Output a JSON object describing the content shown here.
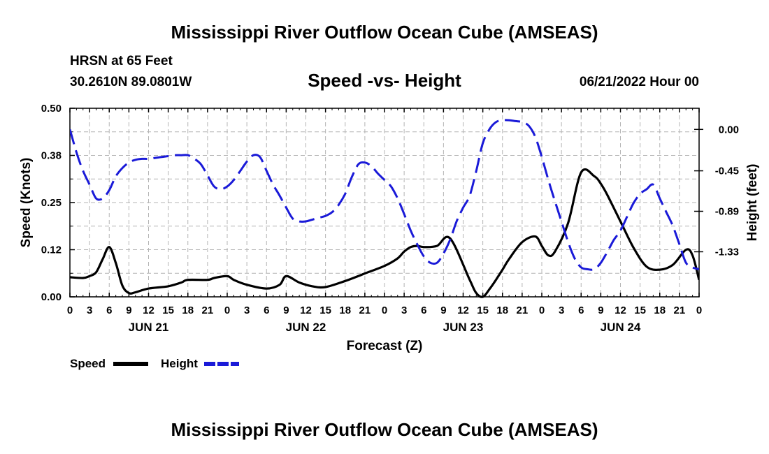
{
  "header": {
    "main_title": "Mississippi River Outflow Ocean Cube (AMSEAS)",
    "station": "HRSN at 65 Feet",
    "coords": "30.2610N  89.0801W",
    "subtitle": "Speed -vs- Height",
    "date": "06/21/2022 Hour 00",
    "bottom_title": "Mississippi River Outflow Ocean Cube (AMSEAS)"
  },
  "chart_data": {
    "type": "line",
    "title": "Speed -vs- Height",
    "xlabel": "Forecast (Z)",
    "ylabel": "Speed (Knots)",
    "y2label": "Height (feet)",
    "xlim": [
      0,
      96
    ],
    "ylim": [
      0,
      0.5
    ],
    "y2lim": [
      -1.82,
      0.23
    ],
    "x_tick_labels": [
      "0",
      "3",
      "6",
      "9",
      "12",
      "15",
      "18",
      "21",
      "0",
      "3",
      "6",
      "9",
      "12",
      "15",
      "18",
      "21",
      "0",
      "3",
      "6",
      "9",
      "12",
      "15",
      "18",
      "21",
      "0",
      "3",
      "6",
      "9",
      "12",
      "15",
      "18",
      "21",
      "0"
    ],
    "day_labels": [
      {
        "x": 12,
        "label": "JUN 21"
      },
      {
        "x": 36,
        "label": "JUN 22"
      },
      {
        "x": 60,
        "label": "JUN 23"
      },
      {
        "x": 84,
        "label": "JUN 24"
      }
    ],
    "y_ticks": [
      {
        "value": 0.0,
        "label": "0.00"
      },
      {
        "value": 0.125,
        "label": "0.12"
      },
      {
        "value": 0.25,
        "label": "0.25"
      },
      {
        "value": 0.375,
        "label": "0.38"
      },
      {
        "value": 0.5,
        "label": "0.50"
      }
    ],
    "y2_ticks": [
      {
        "value": 0.0,
        "label": "0.00"
      },
      {
        "value": -0.45,
        "label": "-0.45"
      },
      {
        "value": -0.89,
        "label": "-0.89"
      },
      {
        "value": -1.33,
        "label": "-1.33"
      }
    ],
    "series": [
      {
        "name": "Speed",
        "color": "#000000",
        "axis": "left",
        "x": [
          0,
          2,
          3,
          4,
          5,
          6,
          7,
          8,
          9,
          10,
          12,
          15,
          17,
          18,
          21,
          22,
          24,
          25,
          27,
          30,
          32,
          33,
          35,
          37,
          39,
          42,
          44,
          45,
          48,
          50,
          51,
          52,
          53,
          54,
          56,
          58,
          61,
          62,
          63,
          64,
          65,
          66,
          67,
          69,
          71,
          72,
          73,
          74,
          76,
          78,
          80,
          81,
          82,
          84,
          86,
          88,
          90,
          92,
          94,
          95,
          96
        ],
        "values": [
          0.052,
          0.05,
          0.055,
          0.065,
          0.1,
          0.132,
          0.09,
          0.03,
          0.01,
          0.012,
          0.022,
          0.028,
          0.038,
          0.045,
          0.045,
          0.05,
          0.055,
          0.045,
          0.032,
          0.022,
          0.032,
          0.055,
          0.038,
          0.028,
          0.026,
          0.042,
          0.055,
          0.062,
          0.082,
          0.102,
          0.12,
          0.132,
          0.135,
          0.132,
          0.135,
          0.155,
          0.045,
          0.01,
          0.0,
          0.02,
          0.045,
          0.072,
          0.1,
          0.145,
          0.16,
          0.135,
          0.11,
          0.12,
          0.195,
          0.33,
          0.32,
          0.3,
          0.27,
          0.2,
          0.13,
          0.08,
          0.072,
          0.085,
          0.125,
          0.11,
          0.045
        ]
      },
      {
        "name": "Height",
        "color": "#1a1ad8",
        "axis": "right",
        "x": [
          0,
          1,
          2,
          3,
          4,
          5,
          6,
          7,
          8,
          9,
          10,
          11,
          12,
          13,
          14,
          15,
          16,
          17,
          18,
          19,
          20,
          21,
          22,
          23,
          24,
          25,
          26,
          27,
          28,
          29,
          30,
          31,
          32,
          33,
          34,
          35,
          36,
          37,
          38,
          39,
          40,
          41,
          42,
          43,
          44,
          45,
          46,
          47,
          48,
          49,
          50,
          51,
          52,
          53,
          54,
          55,
          56,
          57,
          58,
          59,
          60,
          61,
          62,
          63,
          64,
          65,
          66,
          67,
          68,
          69,
          70,
          71,
          72,
          73,
          74,
          75,
          76,
          77,
          78,
          79,
          80,
          81,
          82,
          83,
          84,
          85,
          86,
          87,
          88,
          89,
          90,
          91,
          92,
          93,
          94,
          95,
          96
        ],
        "values": [
          0.0,
          -0.25,
          -0.45,
          -0.6,
          -0.75,
          -0.75,
          -0.66,
          -0.51,
          -0.42,
          -0.36,
          -0.33,
          -0.32,
          -0.32,
          -0.31,
          -0.3,
          -0.29,
          -0.28,
          -0.28,
          -0.28,
          -0.32,
          -0.38,
          -0.5,
          -0.62,
          -0.65,
          -0.62,
          -0.55,
          -0.45,
          -0.35,
          -0.28,
          -0.3,
          -0.45,
          -0.6,
          -0.72,
          -0.85,
          -0.97,
          -1.0,
          -1.0,
          -0.98,
          -0.96,
          -0.94,
          -0.9,
          -0.82,
          -0.7,
          -0.52,
          -0.38,
          -0.36,
          -0.4,
          -0.48,
          -0.55,
          -0.62,
          -0.75,
          -0.92,
          -1.1,
          -1.25,
          -1.38,
          -1.45,
          -1.45,
          -1.35,
          -1.2,
          -1.0,
          -0.85,
          -0.72,
          -0.45,
          -0.15,
          0.0,
          0.08,
          0.1,
          0.1,
          0.09,
          0.08,
          0.04,
          -0.08,
          -0.3,
          -0.55,
          -0.78,
          -1.0,
          -1.22,
          -1.4,
          -1.5,
          -1.52,
          -1.52,
          -1.45,
          -1.33,
          -1.2,
          -1.1,
          -0.95,
          -0.8,
          -0.7,
          -0.65,
          -0.6,
          -0.75,
          -0.9,
          -1.05,
          -1.25,
          -1.45,
          -1.5,
          -1.52
        ]
      }
    ],
    "legend": {
      "position": "bottom-left",
      "entries": [
        {
          "label": "Speed",
          "color": "#000000",
          "style": "solid"
        },
        {
          "label": "Height",
          "color": "#1a1ad8",
          "style": "dashed"
        }
      ]
    },
    "grid": true
  }
}
